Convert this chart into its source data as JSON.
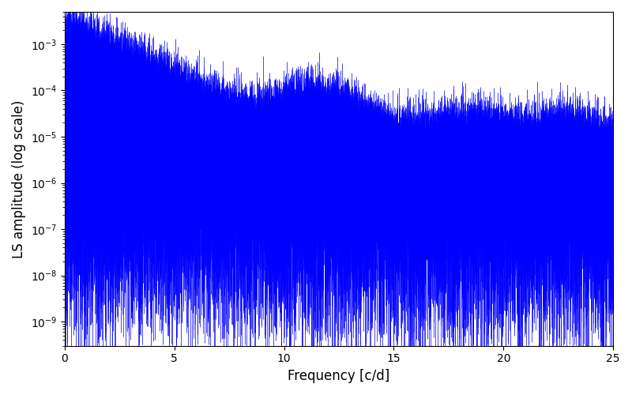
{
  "xlabel": "Frequency [c/d]",
  "ylabel": "LS amplitude (log scale)",
  "xlim": [
    0,
    25
  ],
  "ylim": [
    3e-10,
    0.005
  ],
  "xticks": [
    0,
    5,
    10,
    15,
    20,
    25
  ],
  "line_color": "#0000ff",
  "background_color": "#ffffff",
  "fig_width": 8.0,
  "fig_height": 5.0,
  "dpi": 100,
  "seed": 42,
  "n_points": 8000,
  "freq_max": 25.0
}
